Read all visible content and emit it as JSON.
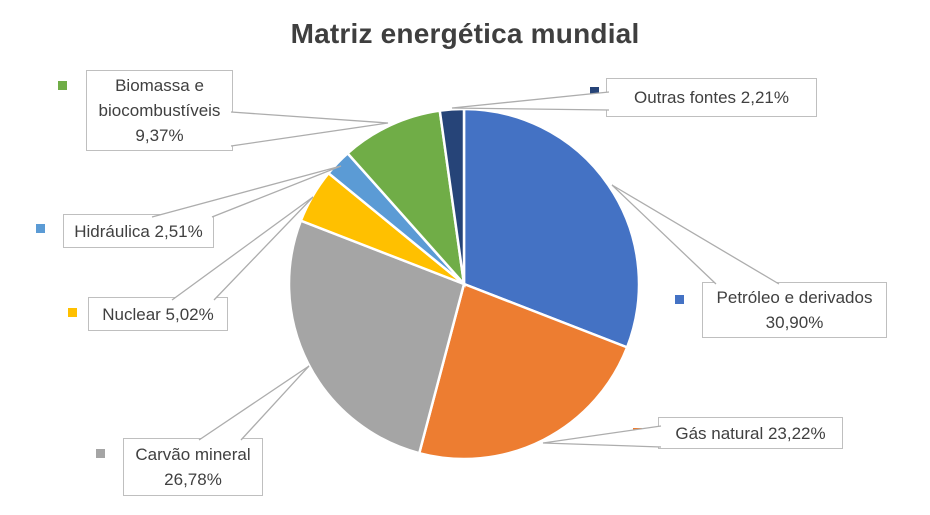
{
  "title": "Matriz energética mundial",
  "chart_data": {
    "type": "pie",
    "title": "Matriz energética mundial",
    "direction": "clockwise",
    "start_angle_deg": 0,
    "legend_position": "callouts",
    "slices": [
      {
        "label": "Petróleo e derivados",
        "value": 30.9,
        "display": "30,90%",
        "color": "#4472C4"
      },
      {
        "label": "Gás natural",
        "value": 23.22,
        "display": "23,22%",
        "color": "#ED7D31"
      },
      {
        "label": "Carvão mineral",
        "value": 26.78,
        "display": "26,78%",
        "color": "#A5A5A5"
      },
      {
        "label": "Nuclear",
        "value": 5.02,
        "display": "5,02%",
        "color": "#FFC000"
      },
      {
        "label": "Hidráulica",
        "value": 2.51,
        "display": "2,51%",
        "color": "#5B9BD5"
      },
      {
        "label": "Biomassa e biocombustíveis",
        "value": 9.37,
        "display": "9,37%",
        "color": "#70AD47"
      },
      {
        "label": "Outras fontes",
        "value": 2.21,
        "display": "2,21%",
        "color": "#264478"
      }
    ]
  },
  "callouts": [
    {
      "text": "Biomassa e biocombustíveis 9,37%",
      "marker_color": "#70AD47"
    },
    {
      "text": "Outras fontes 2,21%",
      "marker_color": "#264478"
    },
    {
      "text": "Hidráulica 2,51%",
      "marker_color": "#5B9BD5"
    },
    {
      "text": "Nuclear 5,02%",
      "marker_color": "#FFC000"
    },
    {
      "text": "Carvão mineral 26,78%",
      "marker_color": "#A5A5A5"
    },
    {
      "text": "Petróleo e derivados 30,90%",
      "marker_color": "#4472C4"
    },
    {
      "text": "Gás natural 23,22%",
      "marker_color": "#ED7D31"
    }
  ],
  "colors": {
    "title_text": "#3f3f3f",
    "label_text": "#404040",
    "callout_border": "#bfbfbf",
    "leader_line": "#adadad",
    "background": "#ffffff",
    "slice_separator": "#ffffff"
  }
}
